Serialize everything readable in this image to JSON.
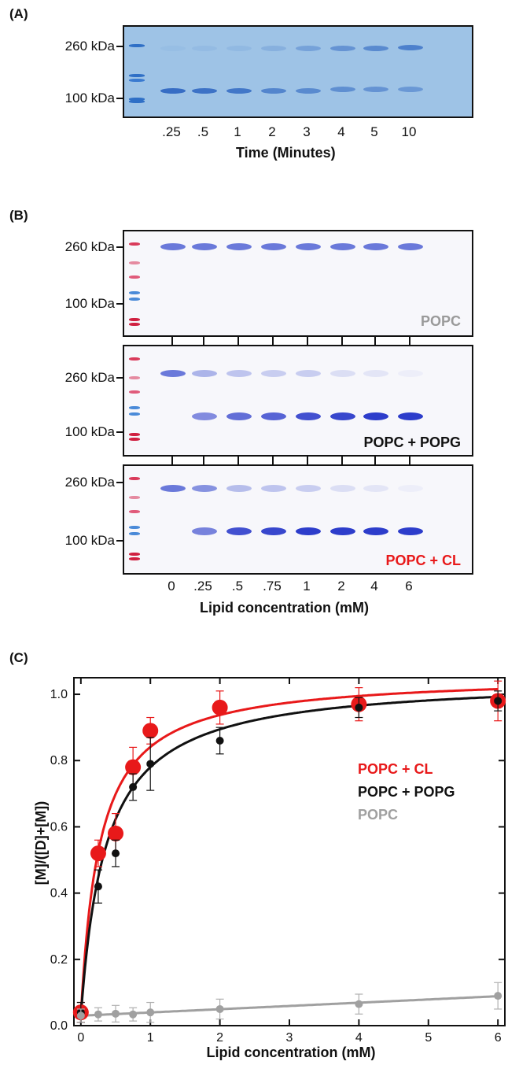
{
  "panel_a": {
    "label": "(A)",
    "marker_high": "260 kDa",
    "marker_low": "100 kDa",
    "lanes": [
      ".25",
      ".5",
      "1",
      "2",
      "3",
      "4",
      "5",
      "10"
    ],
    "xlabel": "Time (Minutes)"
  },
  "panel_b": {
    "label": "(B)",
    "marker_high": "260 kDa",
    "marker_low": "100 kDa",
    "gels": [
      {
        "name": "POPC",
        "color": "#9a9a9a"
      },
      {
        "name": "POPC + POPG",
        "color": "#111111"
      },
      {
        "name": "POPC + CL",
        "color": "#e8191a"
      }
    ],
    "lanes": [
      "0",
      ".25",
      ".5",
      ".75",
      "1",
      "2",
      "4",
      "6"
    ],
    "xlabel": "Lipid concentration (mM)"
  },
  "panel_c": {
    "label": "(C)"
  },
  "chart_data": {
    "type": "scatter",
    "xlabel": "Lipid concentration (mM)",
    "ylabel": "[M]/([D]+[M])",
    "xlim": [
      -0.1,
      6.1
    ],
    "ylim": [
      0.0,
      1.05
    ],
    "xticks": [
      "0",
      "1",
      "2",
      "3",
      "4",
      "5",
      "6"
    ],
    "yticks": [
      "0.0",
      "0.2",
      "0.4",
      "0.6",
      "0.8",
      "1.0"
    ],
    "legend_placement": "center-right",
    "series": [
      {
        "name": "POPC + CL",
        "color": "#e8191a",
        "x": [
          0,
          0.25,
          0.5,
          0.75,
          1,
          2,
          4,
          6
        ],
        "y": [
          0.04,
          0.52,
          0.58,
          0.78,
          0.89,
          0.96,
          0.97,
          0.98
        ],
        "err": [
          0.03,
          0.04,
          0.06,
          0.06,
          0.04,
          0.05,
          0.05,
          0.06
        ]
      },
      {
        "name": "POPC + POPG",
        "color": "#111111",
        "x": [
          0,
          0.25,
          0.5,
          0.75,
          1,
          2,
          4,
          6
        ],
        "y": [
          0.04,
          0.42,
          0.52,
          0.72,
          0.79,
          0.86,
          0.96,
          0.98
        ],
        "err": [
          0.03,
          0.05,
          0.04,
          0.04,
          0.08,
          0.04,
          0.03,
          0.03
        ]
      },
      {
        "name": "POPC",
        "color": "#a0a0a0",
        "x": [
          0,
          0.25,
          0.5,
          0.75,
          1,
          2,
          4,
          6
        ],
        "y": [
          0.03,
          0.034,
          0.036,
          0.034,
          0.04,
          0.05,
          0.065,
          0.09
        ],
        "err": [
          0.02,
          0.02,
          0.025,
          0.02,
          0.03,
          0.03,
          0.03,
          0.04
        ]
      }
    ]
  }
}
